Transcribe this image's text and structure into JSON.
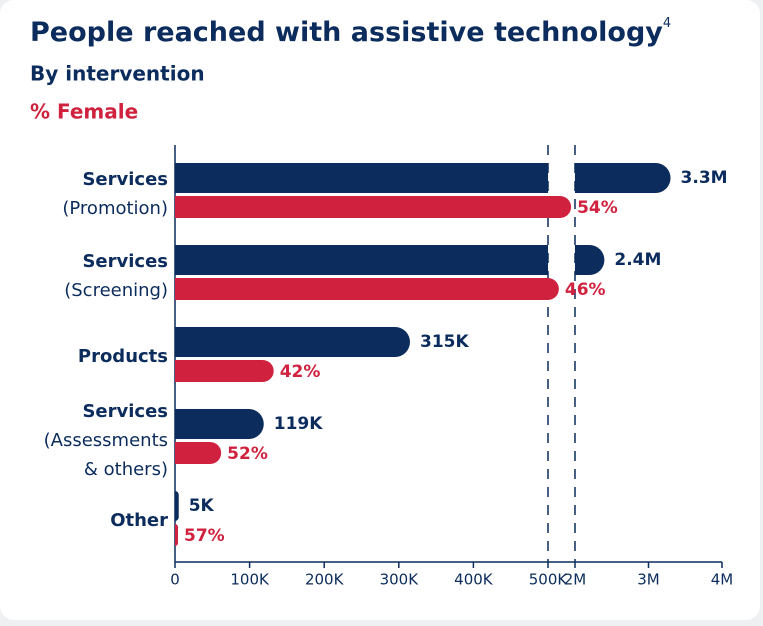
{
  "chart_data": {
    "type": "bar",
    "orientation": "horizontal",
    "title": "People reached with assistive technology",
    "title_footnote": "4",
    "subtitle": "By intervention",
    "annotation": "% Female",
    "categories": [
      "Services",
      "Services",
      "Products",
      "Services",
      "Other"
    ],
    "category_notes": [
      [
        "(Promotion)"
      ],
      [
        "(Screening)"
      ],
      null,
      [
        "(Assessments",
        "& others)"
      ],
      null
    ],
    "series": [
      {
        "color": "#0b2c5c",
        "values": [
          3300000,
          2400000,
          315000,
          119000,
          5000
        ],
        "value_labels": [
          "3.3M",
          "2.4M",
          "315K",
          "119K",
          "5K"
        ]
      },
      {
        "color": "#d0223f",
        "values": [
          54,
          46,
          42,
          52,
          57
        ],
        "value_labels": [
          "54%",
          "46%",
          "42%",
          "52%",
          "57%"
        ]
      }
    ],
    "xlim": [
      0,
      4000000
    ],
    "xbreak": [
      500000,
      2000000
    ],
    "xticks": [
      {
        "value": 0,
        "label": "0"
      },
      {
        "value": 100000,
        "label": "100K"
      },
      {
        "value": 200000,
        "label": "200K"
      },
      {
        "value": 300000,
        "label": "300K"
      },
      {
        "value": 400000,
        "label": "400K"
      },
      {
        "value": 500000,
        "label": "500K"
      },
      {
        "value": 2000000,
        "label": "2M"
      },
      {
        "value": 3000000,
        "label": "3M"
      },
      {
        "value": 4000000,
        "label": "4M"
      }
    ]
  }
}
